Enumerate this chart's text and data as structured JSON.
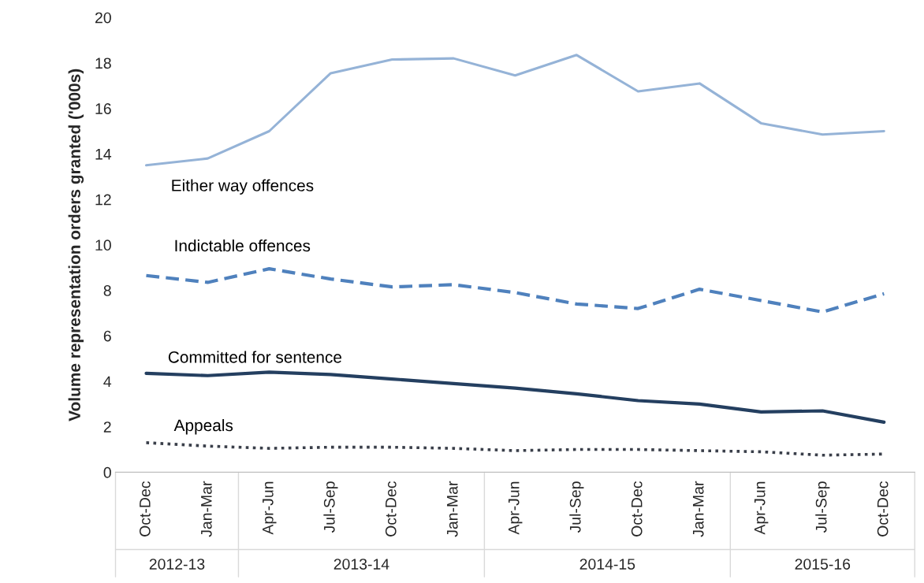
{
  "chart_data": {
    "type": "line",
    "ylabel": "Volume representation orders granted ('000s)",
    "categories": [
      "Oct-Dec",
      "Jan-Mar",
      "Apr-Jun",
      "Jul-Sep",
      "Oct-Dec",
      "Jan-Mar",
      "Apr-Jun",
      "Jul-Sep",
      "Oct-Dec",
      "Jan-Mar",
      "Apr-Jun",
      "Jul-Sep",
      "Oct-Dec"
    ],
    "annotations": [
      "2012-13",
      "2013-14",
      "2014-15",
      "2015-16"
    ],
    "ylim": [
      0,
      20
    ],
    "yticks": [
      0,
      2,
      4,
      6,
      8,
      10,
      12,
      14,
      16,
      18,
      20
    ],
    "grid": false,
    "legend": false,
    "marker": "none",
    "series": [
      {
        "name": "Either way offences",
        "color": "#95b3d7",
        "line_style": "solid",
        "values": [
          13.5,
          13.8,
          15.0,
          17.55,
          18.15,
          18.2,
          17.45,
          18.35,
          16.75,
          17.1,
          15.35,
          14.85,
          15.0
        ]
      },
      {
        "name": "Indictable offences",
        "color": "#4f81bd",
        "line_style": "dashed",
        "values": [
          8.65,
          8.35,
          8.95,
          8.5,
          8.15,
          8.25,
          7.9,
          7.4,
          7.2,
          8.05,
          7.55,
          7.05,
          7.85
        ]
      },
      {
        "name": "Committed for sentence",
        "color": "#243f60",
        "line_style": "solid",
        "values": [
          4.35,
          4.25,
          4.4,
          4.3,
          4.1,
          3.9,
          3.7,
          3.45,
          3.15,
          3.0,
          2.65,
          2.7,
          2.2
        ]
      },
      {
        "name": "Appeals",
        "color": "#3a3f4a",
        "line_style": "dotted",
        "values": [
          1.3,
          1.15,
          1.05,
          1.1,
          1.1,
          1.05,
          0.95,
          1.0,
          1.0,
          0.95,
          0.9,
          0.75,
          0.8
        ]
      }
    ]
  }
}
